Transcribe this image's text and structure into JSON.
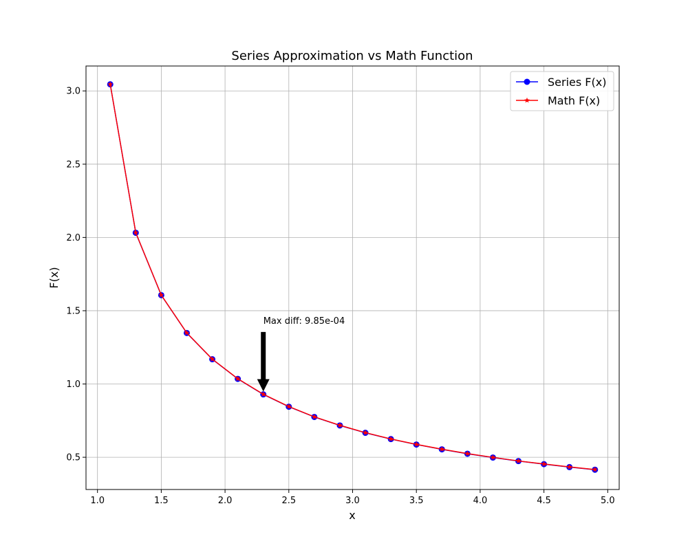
{
  "chart_data": {
    "type": "line",
    "title": "Series Approximation vs Math Function",
    "xlabel": "x",
    "ylabel": "F(x)",
    "xlim": [
      0.91,
      5.09
    ],
    "ylim": [
      0.28,
      3.17
    ],
    "grid": true,
    "legend_position": "top-right",
    "x_ticks": [
      1.0,
      1.5,
      2.0,
      2.5,
      3.0,
      3.5,
      4.0,
      4.5,
      5.0
    ],
    "x_tick_labels": [
      "1.0",
      "1.5",
      "2.0",
      "2.5",
      "3.0",
      "3.5",
      "4.0",
      "4.5",
      "5.0"
    ],
    "y_ticks": [
      0.5,
      1.0,
      1.5,
      2.0,
      2.5,
      3.0
    ],
    "y_tick_labels": [
      "0.5",
      "1.0",
      "1.5",
      "2.0",
      "2.5",
      "3.0"
    ],
    "x": [
      1.1,
      1.3,
      1.5,
      1.7,
      1.9,
      2.1,
      2.3,
      2.5,
      2.7,
      2.9,
      3.1,
      3.3,
      3.5,
      3.7,
      3.9,
      4.1,
      4.3,
      4.5,
      4.7,
      4.9
    ],
    "series": [
      {
        "name": "Series F(x)",
        "color": "#0000ff",
        "marker": "circle",
        "values": [
          3.045,
          2.032,
          1.606,
          1.348,
          1.169,
          1.035,
          0.929,
          0.845,
          0.775,
          0.717,
          0.667,
          0.624,
          0.587,
          0.554,
          0.524,
          0.498,
          0.474,
          0.453,
          0.433,
          0.415
        ]
      },
      {
        "name": "Math F(x)",
        "color": "#ff0000",
        "marker": "star",
        "values": [
          3.045,
          2.033,
          1.607,
          1.349,
          1.17,
          1.036,
          0.93,
          0.846,
          0.776,
          0.718,
          0.668,
          0.625,
          0.588,
          0.555,
          0.525,
          0.499,
          0.475,
          0.454,
          0.434,
          0.416
        ]
      }
    ],
    "annotation": {
      "text": "Max diff: 9.85e-04",
      "point": [
        2.3,
        0.93
      ],
      "text_anchor": [
        2.3,
        1.43
      ]
    }
  }
}
